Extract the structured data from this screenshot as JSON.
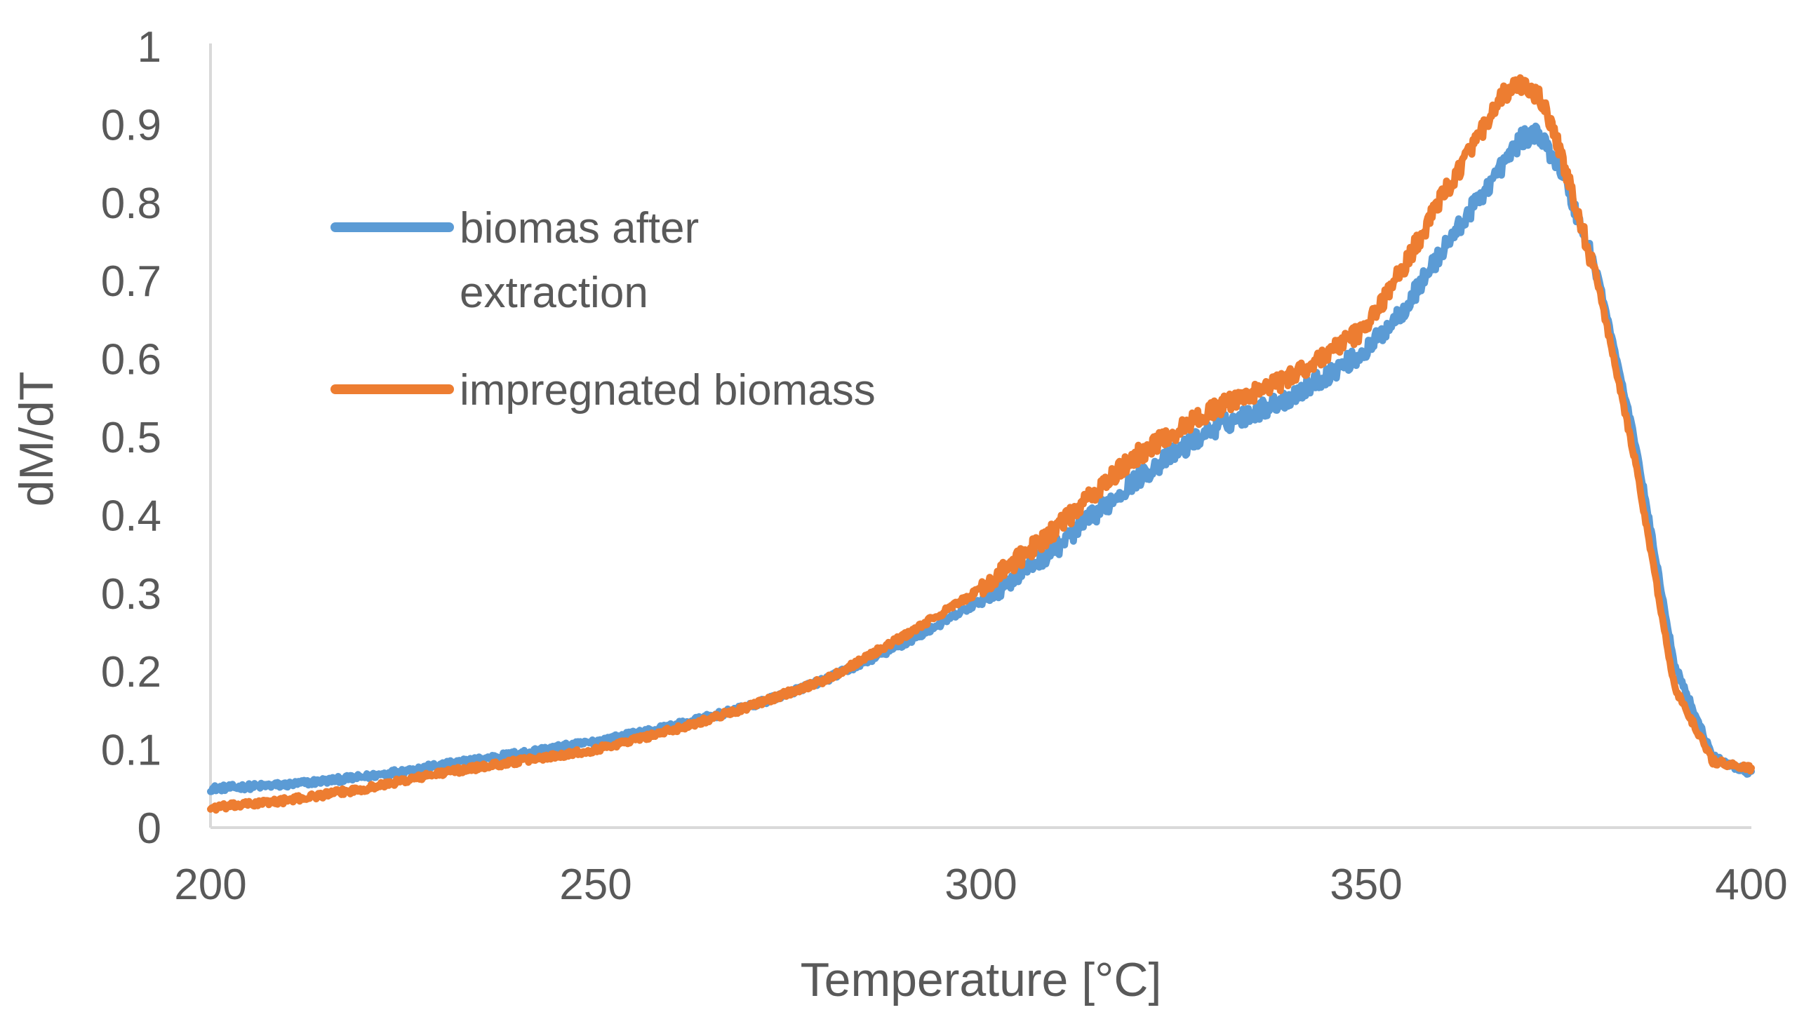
{
  "chart_data": {
    "type": "line",
    "title": "",
    "xlabel": "Temperature [°C]",
    "ylabel": "dM/dT",
    "xlim": [
      200,
      400
    ],
    "ylim": [
      0,
      1
    ],
    "xticks": [
      200,
      250,
      300,
      350,
      400
    ],
    "yticks": [
      0,
      0.1,
      0.2,
      0.3,
      0.4,
      0.5,
      0.6,
      0.7,
      0.8,
      0.9,
      1
    ],
    "grid": false,
    "legend_position": "upper-left",
    "series": [
      {
        "name": "biomas after extraction",
        "color": "#5B9BD5",
        "x": [
          200,
          210,
          220,
          230,
          240,
          250,
          260,
          270,
          280,
          290,
          300,
          310,
          320,
          330,
          340,
          350,
          355,
          360,
          365,
          370,
          372,
          375,
          380,
          385,
          390,
          395,
          400
        ],
        "y": [
          0.05,
          0.055,
          0.065,
          0.08,
          0.095,
          0.11,
          0.13,
          0.155,
          0.19,
          0.235,
          0.29,
          0.36,
          0.445,
          0.51,
          0.55,
          0.61,
          0.665,
          0.74,
          0.81,
          0.88,
          0.89,
          0.85,
          0.71,
          0.49,
          0.21,
          0.09,
          0.07
        ]
      },
      {
        "name": "impregnated biomass",
        "color": "#ED7D31",
        "x": [
          200,
          210,
          220,
          230,
          240,
          250,
          260,
          270,
          280,
          290,
          300,
          310,
          320,
          330,
          340,
          350,
          355,
          360,
          365,
          368,
          370,
          373,
          375,
          380,
          385,
          390,
          395,
          400
        ],
        "y": [
          0.025,
          0.035,
          0.05,
          0.07,
          0.085,
          0.1,
          0.125,
          0.155,
          0.19,
          0.245,
          0.305,
          0.385,
          0.475,
          0.535,
          0.575,
          0.64,
          0.72,
          0.81,
          0.89,
          0.94,
          0.95,
          0.93,
          0.87,
          0.7,
          0.465,
          0.18,
          0.085,
          0.075
        ]
      }
    ]
  }
}
